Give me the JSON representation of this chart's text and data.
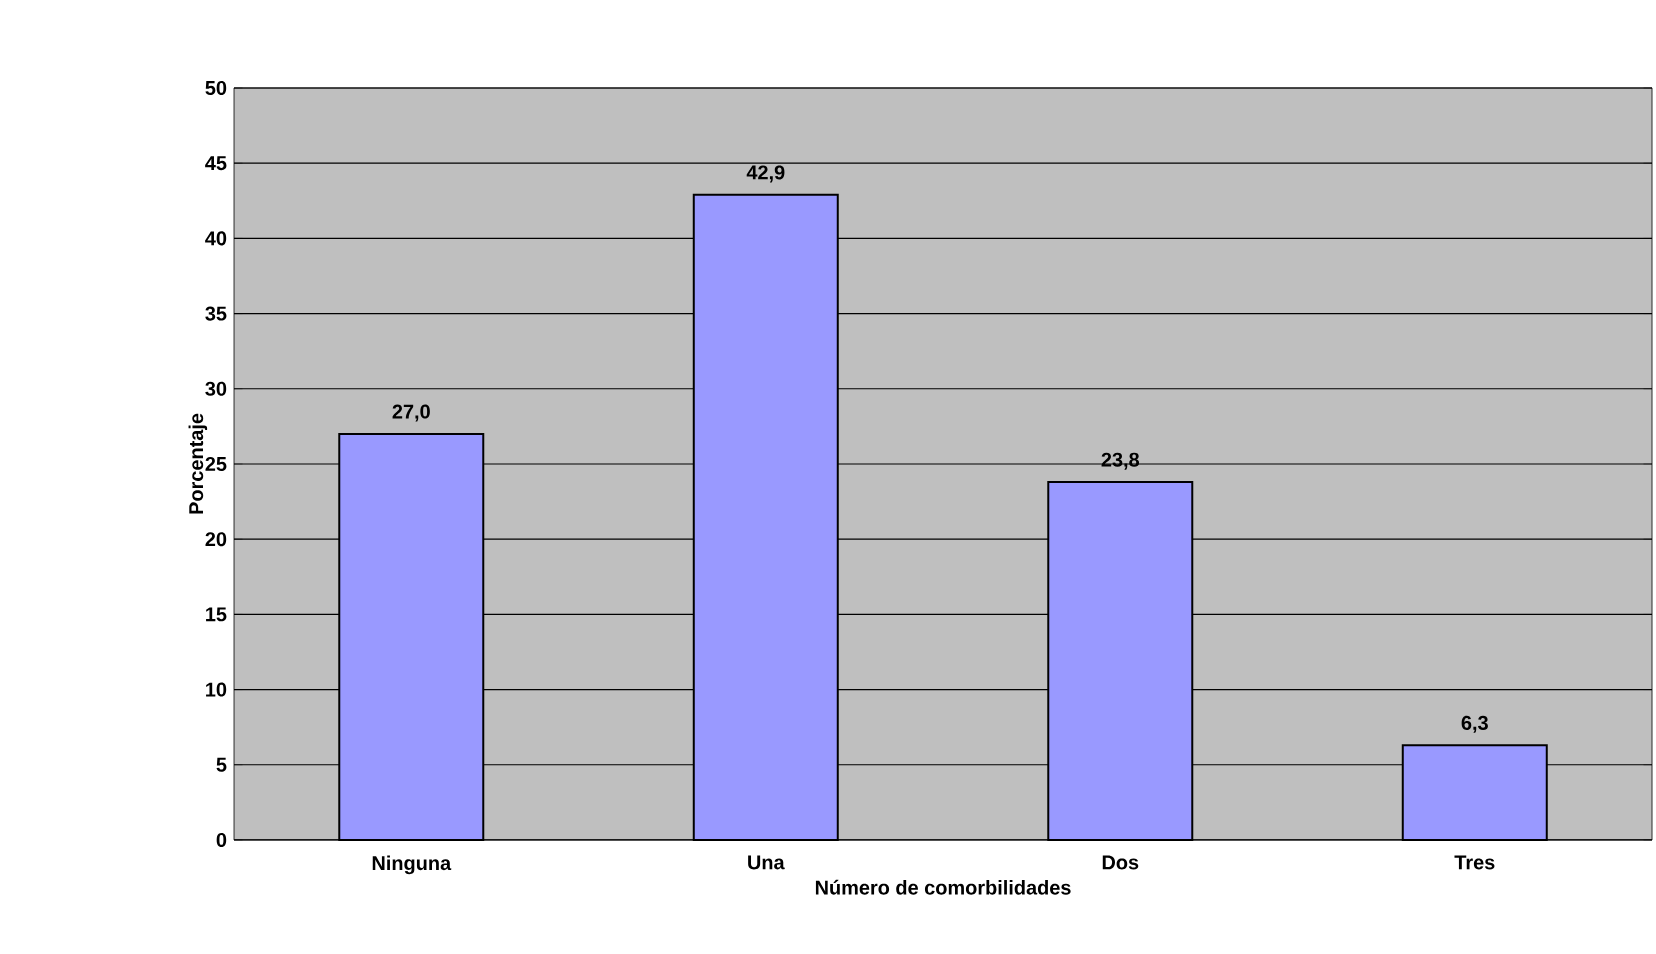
{
  "chart_data": {
    "type": "bar",
    "xlabel": "Número de comorbilidades",
    "ylabel": "Porcentaje",
    "categories": [
      "Ninguna",
      "Una",
      "Dos",
      "Tres"
    ],
    "values": [
      27.0,
      42.9,
      23.8,
      6.3
    ],
    "value_labels": [
      "27,0",
      "42,9",
      "23,8",
      "6,3"
    ],
    "color": "#9999ff",
    "ylim": [
      0,
      50
    ],
    "yticks": [
      0,
      5,
      10,
      15,
      20,
      25,
      30,
      35,
      40,
      45,
      50
    ],
    "grid": "y"
  }
}
